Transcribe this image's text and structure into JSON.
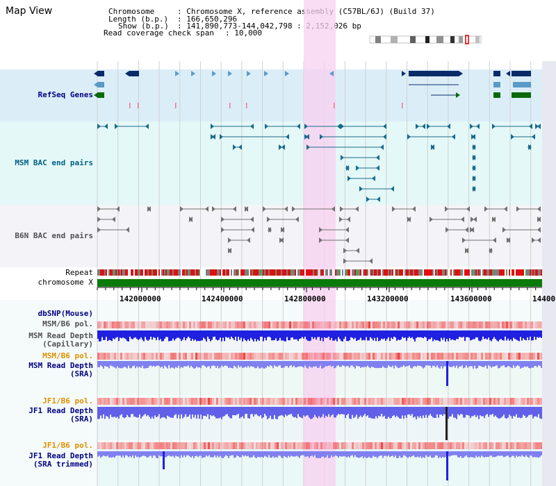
{
  "title": "Map View",
  "info": {
    "chromosome_label": "Chromosome",
    "chromosome_value": ": Chromosome X, reference assembly (C57BL/6J) (Build 37)",
    "length_label": "Length (b.p.)",
    "length_value": ": 166,650,296",
    "show_label": "Show (b.p.)",
    "show_value": ": 141,890,773-144,042,798 : 2,152,026 bp",
    "coverage_label": "Read coverage check span",
    "coverage_value": ": 10,000"
  },
  "tracks": {
    "refseq": "RefSeq Genes",
    "msm_bac": "MSM BAC end pairs",
    "b6n_bac": "B6N BAC end pairs",
    "repeat": "Repeat",
    "chromosome": "chromosome X",
    "dbsnp": "dbSNP(Mouse)",
    "msm_b6_pol_1": "MSM/B6 pol.",
    "msm_depth_cap": "MSM Read Depth\n(Capillary)",
    "msm_b6_pol_2": "MSM/B6 pol.",
    "msm_depth_sra": "MSM Read Depth\n(SRA)",
    "jf1_b6_pol_1": "JF1/B6 pol.",
    "jf1_depth_sra": "JF1 Read Depth\n(SRA)",
    "jf1_b6_pol_2": "JF1/B6 pol.",
    "jf1_depth_trim": "JF1 Read Depth\n(SRA trimmed)"
  },
  "axis_ticks": [
    "142000000",
    "142400000",
    "142800000",
    "143200000",
    "143600000",
    "14400"
  ],
  "colors": {
    "refseq_bg": "#dbeef8",
    "msm_bg": "#e4f8f8",
    "b6n_bg": "#f4f4f8",
    "highlight": "#f8d8f0",
    "gene_dark": "#0a2a6a",
    "gene_light": "#5a9ac8",
    "gene_green": "#0a6a0a",
    "msm_feature": "#1a6a8a",
    "b6n_feature": "#707070",
    "chrom_bar": "#0a7a0a",
    "depth_blue": "#2020e0",
    "depth_light": "#8080f0",
    "pol_red": "#f04040",
    "label_blue": "#000080",
    "label_teal": "#006080",
    "label_orange": "#e09000",
    "label_gray": "#505050"
  }
}
